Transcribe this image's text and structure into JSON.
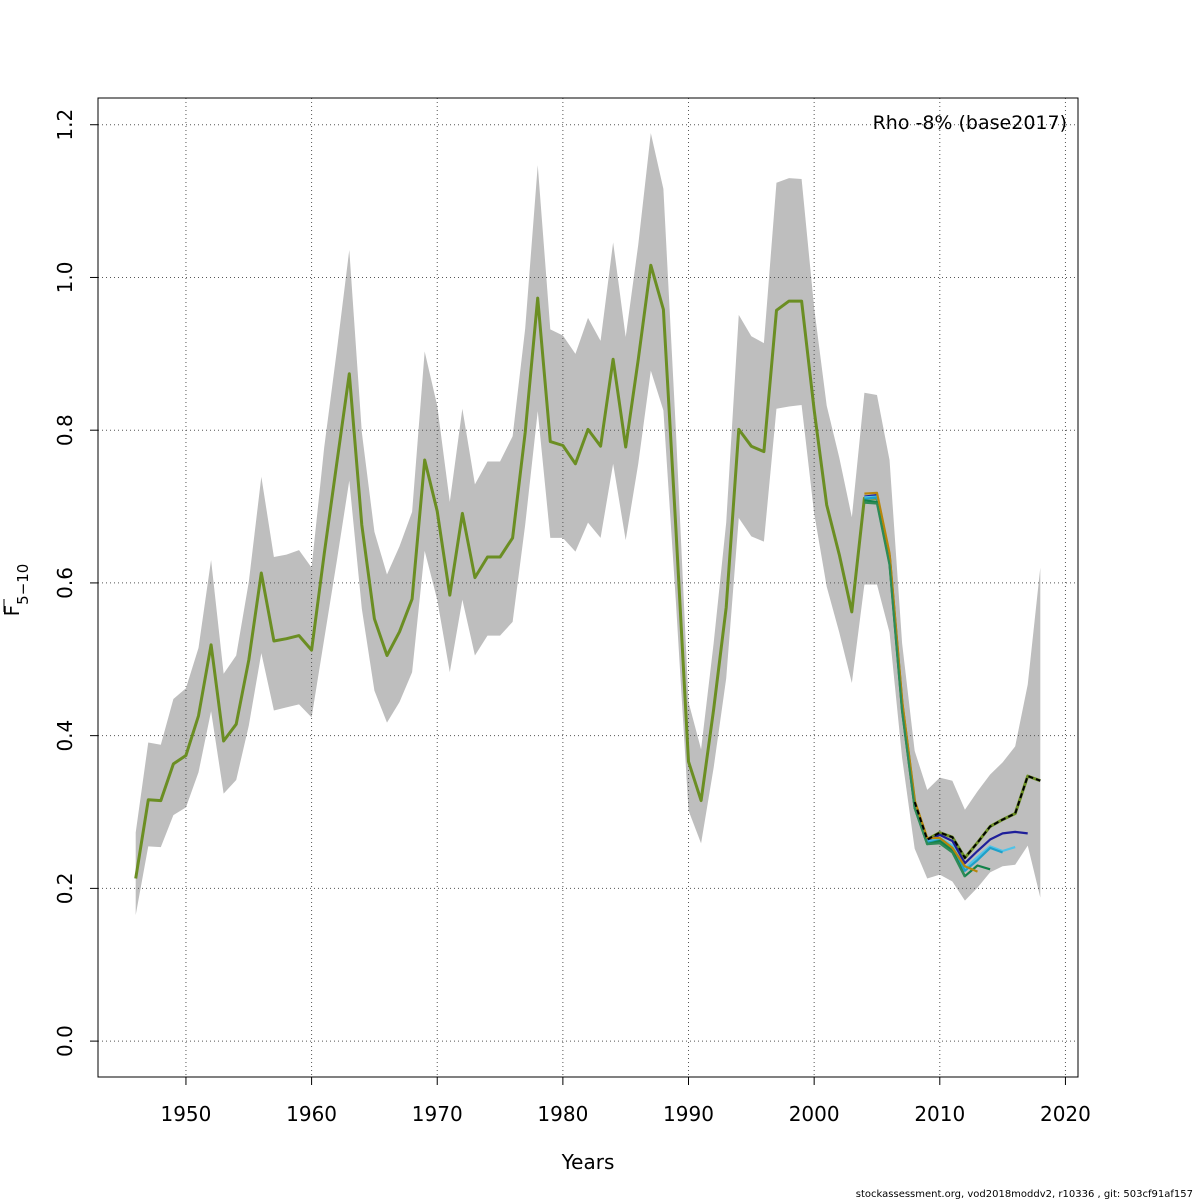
{
  "chart_data": {
    "type": "line",
    "title": "",
    "xlabel": "Years",
    "ylabel_main": "F",
    "ylabel_sub": "5−10",
    "legend_text": "Rho -8% (base2017)",
    "legend_position": "top-right",
    "footer": "stockassessment.org, vod2018moddv2, r10336 , git: 503cf91af157",
    "xlim": [
      1943,
      2021
    ],
    "ylim": [
      -0.047,
      1.235
    ],
    "x_ticks": [
      1950,
      1960,
      1970,
      1980,
      1990,
      2000,
      2010,
      2020
    ],
    "x_tick_labels": [
      "1950",
      "1960",
      "1970",
      "1980",
      "1990",
      "2000",
      "2010",
      "2020"
    ],
    "y_ticks": [
      0.0,
      0.2,
      0.4,
      0.6,
      0.8,
      1.0,
      1.2
    ],
    "y_tick_labels": [
      "0.0",
      "0.2",
      "0.4",
      "0.6",
      "0.8",
      "1.0",
      "1.2"
    ],
    "grid": true,
    "colors": {
      "band": "#bebebe",
      "main_line": "#6b8e23",
      "grid": "#555555",
      "retro_2017": "#1f1f9a",
      "retro_2016": "#4fc3e8",
      "retro_2015": "#1fa0c8",
      "retro_2014": "#12834a",
      "retro_2013": "#b8860b",
      "retro_2012": "#2e8b57"
    },
    "confidence_band": {
      "x": [
        1946,
        1947,
        1948,
        1949,
        1950,
        1951,
        1952,
        1953,
        1954,
        1955,
        1956,
        1957,
        1958,
        1959,
        1960,
        1961,
        1962,
        1963,
        1964,
        1965,
        1966,
        1967,
        1968,
        1969,
        1970,
        1971,
        1972,
        1973,
        1974,
        1975,
        1976,
        1977,
        1978,
        1979,
        1980,
        1981,
        1982,
        1983,
        1984,
        1985,
        1986,
        1987,
        1988,
        1989,
        1990,
        1991,
        1992,
        1993,
        1994,
        1995,
        1996,
        1997,
        1998,
        1999,
        2000,
        2001,
        2002,
        2003,
        2004,
        2005,
        2006,
        2007,
        2008,
        2009,
        2010,
        2011,
        2012,
        2013,
        2014,
        2015,
        2016,
        2017,
        2018
      ],
      "lower": [
        0.165,
        0.255,
        0.254,
        0.296,
        0.306,
        0.352,
        0.432,
        0.324,
        0.342,
        0.413,
        0.508,
        0.433,
        0.437,
        0.441,
        0.424,
        0.526,
        0.628,
        0.734,
        0.566,
        0.459,
        0.417,
        0.444,
        0.483,
        0.642,
        0.578,
        0.483,
        0.578,
        0.505,
        0.531,
        0.531,
        0.549,
        0.676,
        0.825,
        0.659,
        0.659,
        0.641,
        0.679,
        0.659,
        0.756,
        0.656,
        0.756,
        0.878,
        0.826,
        0.574,
        0.302,
        0.259,
        0.358,
        0.475,
        0.685,
        0.661,
        0.654,
        0.828,
        0.831,
        0.833,
        0.691,
        0.595,
        0.535,
        0.469,
        0.598,
        0.598,
        0.535,
        0.371,
        0.252,
        0.213,
        0.218,
        0.209,
        0.184,
        0.201,
        0.221,
        0.229,
        0.231,
        0.256,
        0.188
      ],
      "upper": [
        0.273,
        0.391,
        0.388,
        0.448,
        0.462,
        0.515,
        0.63,
        0.481,
        0.505,
        0.601,
        0.739,
        0.634,
        0.637,
        0.643,
        0.62,
        0.777,
        0.903,
        1.036,
        0.797,
        0.667,
        0.611,
        0.648,
        0.693,
        0.903,
        0.832,
        0.706,
        0.828,
        0.729,
        0.759,
        0.759,
        0.792,
        0.933,
        1.147,
        0.932,
        0.924,
        0.9,
        0.947,
        0.917,
        1.046,
        0.922,
        1.043,
        1.189,
        1.116,
        0.798,
        0.444,
        0.382,
        0.521,
        0.679,
        0.951,
        0.923,
        0.914,
        1.124,
        1.13,
        1.129,
        0.96,
        0.832,
        0.764,
        0.686,
        0.849,
        0.846,
        0.761,
        0.521,
        0.38,
        0.329,
        0.345,
        0.341,
        0.303,
        0.327,
        0.349,
        0.365,
        0.386,
        0.467,
        0.62
      ]
    },
    "series": [
      {
        "x": [
          1946,
          1947,
          1948,
          1949,
          1950,
          1951,
          1952,
          1953,
          1954,
          1955,
          1956,
          1957,
          1958,
          1959,
          1960,
          1961,
          1962,
          1963,
          1964,
          1965,
          1966,
          1967,
          1968,
          1969,
          1970,
          1971,
          1972,
          1973,
          1974,
          1975,
          1976,
          1977,
          1978,
          1979,
          1980,
          1981,
          1982,
          1983,
          1984,
          1985,
          1986,
          1987,
          1988,
          1989,
          1990,
          1991,
          1992,
          1993,
          1994,
          1995,
          1996,
          1997,
          1998,
          1999,
          2000,
          2001,
          2002,
          2003,
          2004,
          2005,
          2006,
          2007,
          2008,
          2009,
          2010,
          2011,
          2012,
          2013,
          2014,
          2015,
          2016,
          2017,
          2018
        ],
        "values": [
          0.213,
          0.316,
          0.315,
          0.363,
          0.374,
          0.426,
          0.519,
          0.393,
          0.415,
          0.499,
          0.613,
          0.524,
          0.527,
          0.531,
          0.512,
          0.638,
          0.756,
          0.874,
          0.676,
          0.553,
          0.505,
          0.536,
          0.579,
          0.761,
          0.694,
          0.584,
          0.691,
          0.607,
          0.634,
          0.634,
          0.659,
          0.797,
          0.973,
          0.785,
          0.78,
          0.756,
          0.801,
          0.779,
          0.893,
          0.778,
          0.893,
          1.016,
          0.958,
          0.671,
          0.366,
          0.315,
          0.434,
          0.568,
          0.801,
          0.779,
          0.772,
          0.957,
          0.969,
          0.969,
          0.826,
          0.702,
          0.637,
          0.562,
          0.711,
          0.711,
          0.634,
          0.441,
          0.313,
          0.264,
          0.273,
          0.267,
          0.24,
          0.26,
          0.281,
          0.29,
          0.298,
          0.347,
          0.341
        ],
        "style": "dashed-black"
      },
      {
        "x": [
          2004,
          2005,
          2006,
          2007,
          2008,
          2009,
          2010,
          2011,
          2012,
          2013,
          2014,
          2015,
          2016,
          2017
        ],
        "values": [
          0.713,
          0.715,
          0.636,
          0.443,
          0.312,
          0.262,
          0.27,
          0.262,
          0.233,
          0.249,
          0.264,
          0.272,
          0.274,
          0.272
        ]
      },
      {
        "x": [
          2004,
          2005,
          2006,
          2007,
          2008,
          2009,
          2010,
          2011,
          2012,
          2013,
          2014,
          2015,
          2016
        ],
        "values": [
          0.712,
          0.713,
          0.634,
          0.441,
          0.31,
          0.261,
          0.266,
          0.256,
          0.226,
          0.241,
          0.255,
          0.249,
          0.254
        ]
      },
      {
        "x": [
          2004,
          2005,
          2006,
          2007,
          2008,
          2009,
          2010,
          2011,
          2012,
          2013,
          2014,
          2015
        ],
        "values": [
          0.71,
          0.712,
          0.633,
          0.44,
          0.309,
          0.26,
          0.263,
          0.253,
          0.223,
          0.237,
          0.253,
          0.247
        ]
      },
      {
        "x": [
          2004,
          2005,
          2006,
          2007,
          2008,
          2009,
          2010,
          2011,
          2012,
          2013,
          2014
        ],
        "values": [
          0.708,
          0.706,
          0.626,
          0.433,
          0.305,
          0.258,
          0.262,
          0.25,
          0.216,
          0.23,
          0.225
        ]
      },
      {
        "x": [
          2004,
          2005,
          2006,
          2007,
          2008,
          2009,
          2010,
          2011,
          2012,
          2013
        ],
        "values": [
          0.717,
          0.718,
          0.639,
          0.446,
          0.315,
          0.266,
          0.266,
          0.253,
          0.229,
          0.222
        ]
      },
      {
        "x": [
          2004,
          2005,
          2006,
          2007,
          2008,
          2009,
          2010,
          2011,
          2012
        ],
        "values": [
          0.705,
          0.704,
          0.624,
          0.432,
          0.305,
          0.258,
          0.259,
          0.247,
          0.215
        ]
      }
    ]
  }
}
